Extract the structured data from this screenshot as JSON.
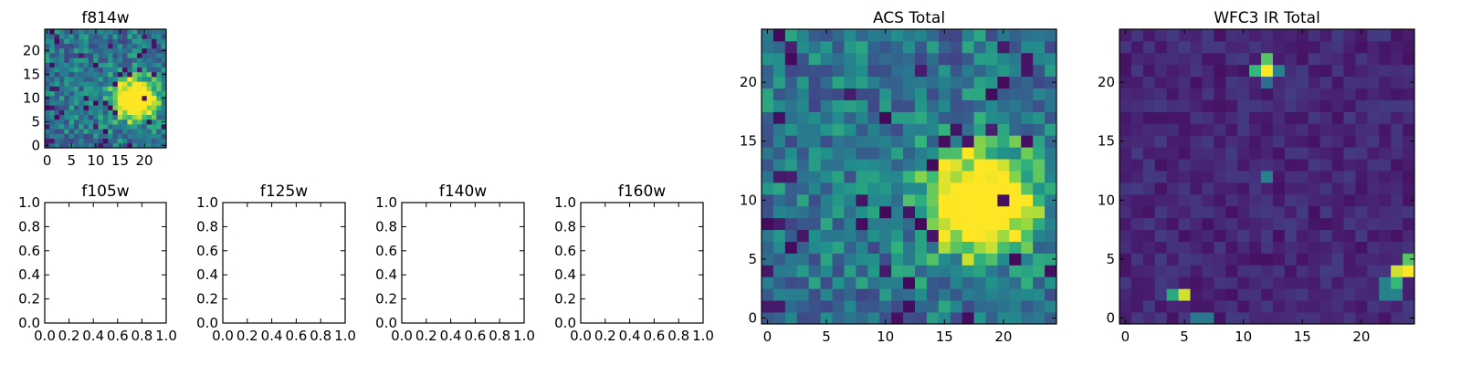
{
  "chart_data": [
    {
      "type": "heatmap",
      "title": "f814w",
      "grid_size": 25,
      "xticks": [
        0,
        5,
        10,
        15,
        20
      ],
      "yticks": [
        0,
        5,
        10,
        15,
        20
      ],
      "xlim": [
        -0.5,
        24.5
      ],
      "ylim": [
        -0.5,
        24.5
      ],
      "colormap": "viridis",
      "source": {
        "kind": "blob",
        "center": [
          18,
          10
        ],
        "radius": 3.2
      },
      "noise_seed": 11
    },
    {
      "type": "empty",
      "title": "f105w",
      "xticks": [
        "0.0",
        "0.2",
        "0.4",
        "0.6",
        "0.8",
        "1.0"
      ],
      "yticks": [
        "0.0",
        "0.2",
        "0.4",
        "0.6",
        "0.8",
        "1.0"
      ],
      "xlim": [
        0,
        1
      ],
      "ylim": [
        0,
        1
      ]
    },
    {
      "type": "empty",
      "title": "f125w",
      "xticks": [
        "0.0",
        "0.2",
        "0.4",
        "0.6",
        "0.8",
        "1.0"
      ],
      "yticks": [
        "0.0",
        "0.2",
        "0.4",
        "0.6",
        "0.8",
        "1.0"
      ],
      "xlim": [
        0,
        1
      ],
      "ylim": [
        0,
        1
      ]
    },
    {
      "type": "empty",
      "title": "f140w",
      "xticks": [
        "0.0",
        "0.2",
        "0.4",
        "0.6",
        "0.8",
        "1.0"
      ],
      "yticks": [
        "0.0",
        "0.2",
        "0.4",
        "0.6",
        "0.8",
        "1.0"
      ],
      "xlim": [
        0,
        1
      ],
      "ylim": [
        0,
        1
      ]
    },
    {
      "type": "empty",
      "title": "f160w",
      "xticks": [
        "0.0",
        "0.2",
        "0.4",
        "0.6",
        "0.8",
        "1.0"
      ],
      "yticks": [
        "0.0",
        "0.2",
        "0.4",
        "0.6",
        "0.8",
        "1.0"
      ],
      "xlim": [
        0,
        1
      ],
      "ylim": [
        0,
        1
      ]
    },
    {
      "type": "heatmap",
      "title": "ACS Total",
      "grid_size": 25,
      "xticks": [
        0,
        5,
        10,
        15,
        20
      ],
      "yticks": [
        0,
        5,
        10,
        15,
        20
      ],
      "xlim": [
        -0.5,
        24.5
      ],
      "ylim": [
        -0.5,
        24.5
      ],
      "colormap": "viridis",
      "source": {
        "kind": "blob",
        "center": [
          18,
          10
        ],
        "radius": 3.2
      },
      "noise_seed": 11
    },
    {
      "type": "heatmap",
      "title": "WFC3 IR Total",
      "grid_size": 25,
      "xticks": [
        0,
        5,
        10,
        15,
        20
      ],
      "yticks": [
        0,
        5,
        10,
        15,
        20
      ],
      "xlim": [
        -0.5,
        24.5
      ],
      "ylim": [
        -0.5,
        24.5
      ],
      "colormap": "viridis",
      "source": {
        "kind": "points",
        "points": [
          [
            12,
            21,
            1.0
          ],
          [
            11,
            21,
            0.75
          ],
          [
            13,
            21,
            0.55
          ],
          [
            12,
            22,
            0.8
          ],
          [
            12,
            20,
            0.45
          ],
          [
            12,
            12,
            0.55
          ],
          [
            5,
            2,
            0.95
          ],
          [
            4,
            2,
            0.7
          ],
          [
            6,
            0,
            0.5
          ],
          [
            7,
            0,
            0.5
          ],
          [
            24,
            4,
            1.0
          ],
          [
            23,
            4,
            0.95
          ],
          [
            24,
            5,
            0.8
          ],
          [
            23,
            3,
            0.75
          ],
          [
            22,
            3,
            0.55
          ],
          [
            23,
            2,
            0.55
          ],
          [
            22,
            2,
            0.55
          ]
        ]
      },
      "noise_seed": 7
    }
  ]
}
